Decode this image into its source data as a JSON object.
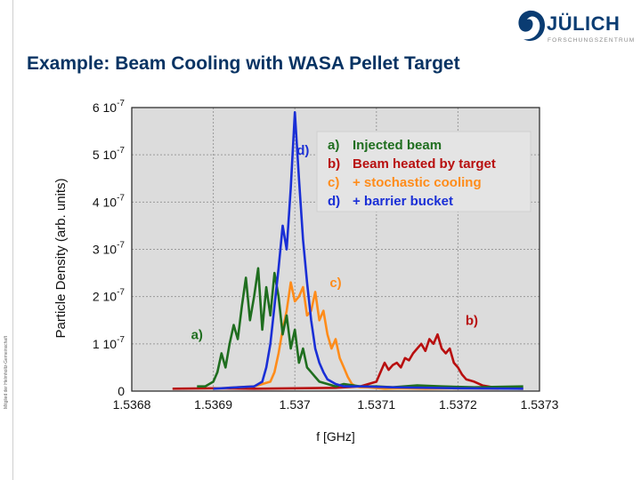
{
  "header": {
    "logo_text": "JÜLICH",
    "logo_subtext": "FORSCHUNGSZENTRUM",
    "side_text": "Mitglied der Helmholtz-Gemeinschaft"
  },
  "slide": {
    "title": "Example: Beam Cooling with WASA Pellet Target"
  },
  "colors": {
    "title": "#073363",
    "logo": "#0a3c72",
    "plot_bg": "#dcdcdc",
    "a": "#1f6e1f",
    "b": "#b80f0f",
    "c": "#ff8c1a",
    "d": "#1a2fd6"
  },
  "chart_data": {
    "type": "line",
    "xlabel": "f [GHz]",
    "ylabel": "Particle Density (arb. units)",
    "xlim": [
      1.5368,
      1.5373
    ],
    "ylim": [
      0,
      6e-07
    ],
    "grid": true,
    "x_ticks": [
      1.5368,
      1.5369,
      1.537,
      1.5371,
      1.5372,
      1.5373
    ],
    "x_tick_labels": [
      "1.5368",
      "1.5369",
      "1.537",
      "1.5371",
      "1.5372",
      "1.5373"
    ],
    "y_ticks": [
      0,
      1e-07,
      2e-07,
      3e-07,
      4e-07,
      5e-07,
      6e-07
    ],
    "y_tick_labels": [
      {
        "mantissa": "0",
        "exp": ""
      },
      {
        "mantissa": "1 10",
        "exp": "-7"
      },
      {
        "mantissa": "2 10",
        "exp": "-7"
      },
      {
        "mantissa": "3 10",
        "exp": "-7"
      },
      {
        "mantissa": "4 10",
        "exp": "-7"
      },
      {
        "mantissa": "5 10",
        "exp": "-7"
      },
      {
        "mantissa": "6 10",
        "exp": "-7"
      }
    ],
    "legend": {
      "placement": "top-right",
      "entries": [
        {
          "key": "a)",
          "label": "Injected beam"
        },
        {
          "key": "b)",
          "label": "Beam heated by target"
        },
        {
          "key": "c)",
          "label": "+ stochastic cooling"
        },
        {
          "key": "d)",
          "label": "+ barrier bucket"
        }
      ]
    },
    "series": [
      {
        "id": "a",
        "x": [
          1.53688,
          1.53689,
          1.5369,
          1.536905,
          1.53691,
          1.536915,
          1.53692,
          1.536925,
          1.53693,
          1.536935,
          1.53694,
          1.536945,
          1.53695,
          1.536955,
          1.53696,
          1.536965,
          1.53697,
          1.536975,
          1.53698,
          1.536985,
          1.53699,
          1.536995,
          1.537,
          1.537005,
          1.53701,
          1.537015,
          1.53702,
          1.537025,
          1.53703,
          1.53704,
          1.53705,
          1.53706,
          1.53708,
          1.5371,
          1.53712,
          1.53715,
          1.53718,
          1.53722,
          1.53728
        ],
        "y": [
          1e-08,
          1e-08,
          2e-08,
          4e-08,
          8e-08,
          5e-08,
          1e-07,
          1.4e-07,
          1.1e-07,
          1.8e-07,
          2.4e-07,
          1.5e-07,
          2e-07,
          2.6e-07,
          1.3e-07,
          2.2e-07,
          1.6e-07,
          2.5e-07,
          2e-07,
          1.2e-07,
          1.6e-07,
          9e-08,
          1.3e-07,
          6e-08,
          9e-08,
          5e-08,
          4e-08,
          3e-08,
          2e-08,
          1.5e-08,
          1e-08,
          1.5e-08,
          1e-08,
          1e-08,
          8e-09,
          1.2e-08,
          1e-08,
          8e-09,
          1e-08
        ]
      },
      {
        "id": "b",
        "x": [
          1.53685,
          1.5369,
          1.53695,
          1.537,
          1.53705,
          1.53708,
          1.5371,
          1.537105,
          1.53711,
          1.537115,
          1.53712,
          1.537125,
          1.53713,
          1.537135,
          1.53714,
          1.537145,
          1.53715,
          1.537155,
          1.53716,
          1.537165,
          1.53717,
          1.537175,
          1.53718,
          1.537185,
          1.53719,
          1.537195,
          1.5372,
          1.537205,
          1.53721,
          1.53722,
          1.53723,
          1.53725,
          1.53728
        ],
        "y": [
          5e-09,
          6e-09,
          5e-09,
          6e-09,
          7e-09,
          1e-08,
          2e-08,
          4e-08,
          6e-08,
          4.5e-08,
          5.5e-08,
          6e-08,
          5e-08,
          7e-08,
          6.5e-08,
          8e-08,
          9e-08,
          1e-07,
          8.5e-08,
          1.1e-07,
          1e-07,
          1.2e-07,
          9e-08,
          8e-08,
          9e-08,
          6e-08,
          5e-08,
          3.5e-08,
          2.5e-08,
          2e-08,
          1.2e-08,
          6e-09,
          5e-09
        ]
      },
      {
        "id": "c",
        "x": [
          1.5369,
          1.53695,
          1.53697,
          1.536975,
          1.53698,
          1.536985,
          1.53699,
          1.536995,
          1.537,
          1.537005,
          1.53701,
          1.537015,
          1.53702,
          1.537025,
          1.53703,
          1.537035,
          1.53704,
          1.537045,
          1.53705,
          1.537055,
          1.53706,
          1.537065,
          1.53707,
          1.537075,
          1.53708,
          1.53709,
          1.53711,
          1.53713,
          1.53716,
          1.5372,
          1.53725
        ],
        "y": [
          5e-09,
          1e-08,
          2e-08,
          4e-08,
          8e-08,
          1.3e-07,
          1.7e-07,
          2.3e-07,
          1.9e-07,
          2e-07,
          2.2e-07,
          1.6e-07,
          1.7e-07,
          2.1e-07,
          1.5e-07,
          1.7e-07,
          1.2e-07,
          9e-08,
          1.1e-07,
          7e-08,
          5e-08,
          3e-08,
          1.5e-08,
          1e-08,
          8e-09,
          8e-09,
          5e-09,
          6e-09,
          5e-09,
          6e-09,
          5e-09
        ]
      },
      {
        "id": "d",
        "x": [
          1.5369,
          1.53693,
          1.53695,
          1.53696,
          1.536965,
          1.53697,
          1.536975,
          1.53698,
          1.536985,
          1.53699,
          1.536995,
          1.537,
          1.537005,
          1.53701,
          1.537015,
          1.53702,
          1.537025,
          1.53703,
          1.537035,
          1.53704,
          1.53705,
          1.53706,
          1.53708,
          1.53712,
          1.5372,
          1.53728
        ],
        "y": [
          5e-09,
          8e-09,
          1e-08,
          2e-08,
          5e-08,
          1e-07,
          1.8e-07,
          2.6e-07,
          3.5e-07,
          3e-07,
          4.3e-07,
          5.9e-07,
          4.5e-07,
          3.2e-07,
          2.3e-07,
          1.5e-07,
          9e-08,
          6e-08,
          4e-08,
          2.5e-08,
          1.5e-08,
          1e-08,
          1e-08,
          8e-09,
          6e-09,
          5e-09
        ]
      }
    ],
    "annotations": [
      {
        "text": "a)",
        "x": 1.53688,
        "y": 1.1e-07,
        "series": "a"
      },
      {
        "text": "b)",
        "x": 1.537217,
        "y": 1.4e-07,
        "series": "b"
      },
      {
        "text": "c)",
        "x": 1.53705,
        "y": 2.2e-07,
        "series": "c"
      },
      {
        "text": "d)",
        "x": 1.53701,
        "y": 5e-07,
        "series": "d"
      }
    ]
  }
}
